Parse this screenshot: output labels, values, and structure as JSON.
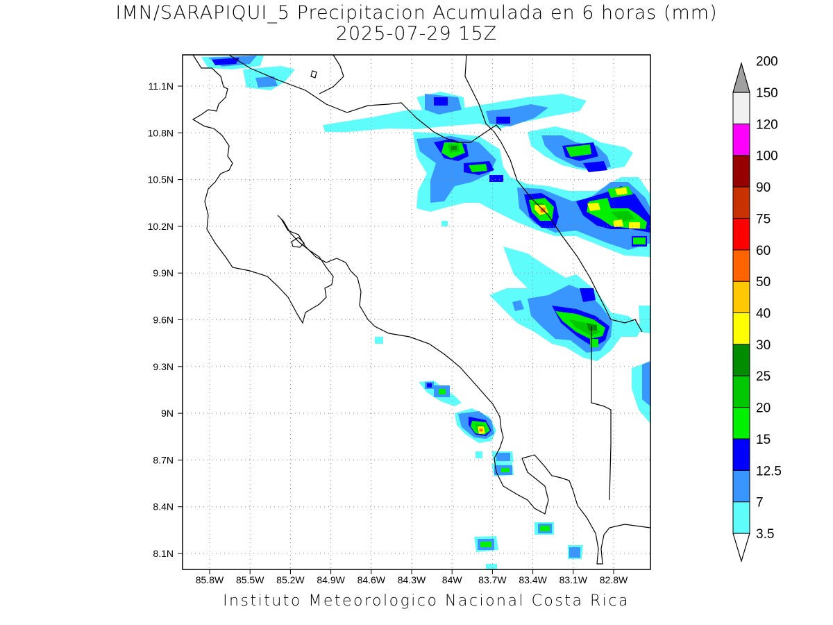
{
  "title": {
    "line1": "IMN/SARAPIQUI_5 Precipitacion Acumulada en 6 horas (mm)",
    "line2": "2025-07-29 15Z"
  },
  "footer": "Instituto Meteorologico Nacional Costa Rica",
  "lat_ticks": [
    "11.1N",
    "10.8N",
    "10.5N",
    "10.2N",
    "9.9N",
    "9.6N",
    "9.3N",
    "9N",
    "8.7N",
    "8.4N",
    "8.1N"
  ],
  "lon_ticks": [
    "85.8W",
    "85.5W",
    "85.2W",
    "84.9W",
    "84.6W",
    "84.3W",
    "84W",
    "83.7W",
    "83.4W",
    "83.1W",
    "82.8W"
  ],
  "colorbar": {
    "labels": [
      "3.5",
      "7",
      "12.5",
      "15",
      "20",
      "25",
      "30",
      "40",
      "50",
      "60",
      "75",
      "90",
      "100",
      "120",
      "150",
      "200"
    ],
    "colors": [
      "#5ffcfc",
      "#3a96ff",
      "#0000ff",
      "#00f000",
      "#00c800",
      "#008c00",
      "#ffff00",
      "#ffc800",
      "#ff6400",
      "#ff0000",
      "#c83200",
      "#960000",
      "#ff00ff",
      "#9b2fcd",
      "#f0f0f0",
      "#a0a0a0"
    ]
  }
}
